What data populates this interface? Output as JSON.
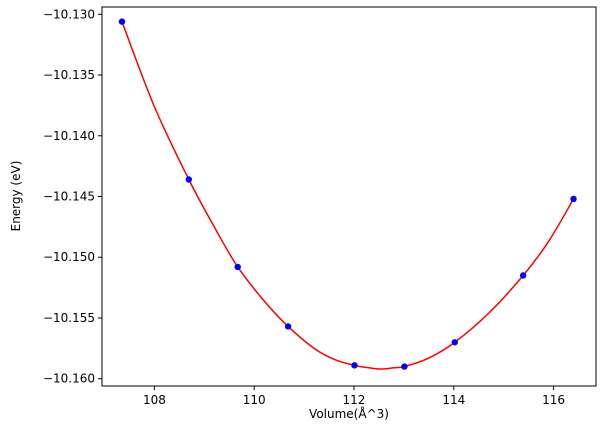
{
  "chart_data": {
    "type": "line",
    "title": "",
    "xlabel": "Volume(Å^3)",
    "ylabel": "Energy (eV)",
    "xlim": [
      106.95,
      116.85
    ],
    "ylim": [
      -10.1606,
      -10.1294
    ],
    "xticks": [
      108,
      110,
      112,
      114,
      116
    ],
    "xtick_labels": [
      "108",
      "110",
      "112",
      "114",
      "116"
    ],
    "yticks": [
      -10.13,
      -10.135,
      -10.14,
      -10.145,
      -10.15,
      -10.155,
      -10.16
    ],
    "ytick_labels": [
      "−10.130",
      "−10.135",
      "−10.140",
      "−10.145",
      "−10.150",
      "−10.155",
      "−10.160"
    ],
    "grid": false,
    "series": [
      {
        "kind": "scatter",
        "color": "#0000ff",
        "x": [
          107.35,
          108.69,
          109.67,
          110.68,
          112.01,
          113.01,
          114.02,
          115.39,
          116.4
        ],
        "y": [
          -10.1306,
          -10.1436,
          -10.1508,
          -10.1557,
          -10.1589,
          -10.159,
          -10.157,
          -10.1515,
          -10.1452
        ]
      },
      {
        "kind": "fit",
        "color": "#ff0000",
        "x": [
          107.35,
          108.0,
          108.69,
          109.2,
          109.67,
          110.2,
          110.68,
          111.2,
          111.6,
          112.01,
          112.3,
          112.55,
          112.8,
          113.01,
          113.5,
          114.02,
          114.7,
          115.39,
          115.9,
          116.4
        ],
        "y": [
          -10.1306,
          -10.1376,
          -10.1436,
          -10.1475,
          -10.1508,
          -10.1536,
          -10.1557,
          -10.1575,
          -10.1584,
          -10.1589,
          -10.1591,
          -10.1592,
          -10.1591,
          -10.159,
          -10.1583,
          -10.157,
          -10.1546,
          -10.1515,
          -10.1487,
          -10.1452
        ]
      }
    ]
  }
}
